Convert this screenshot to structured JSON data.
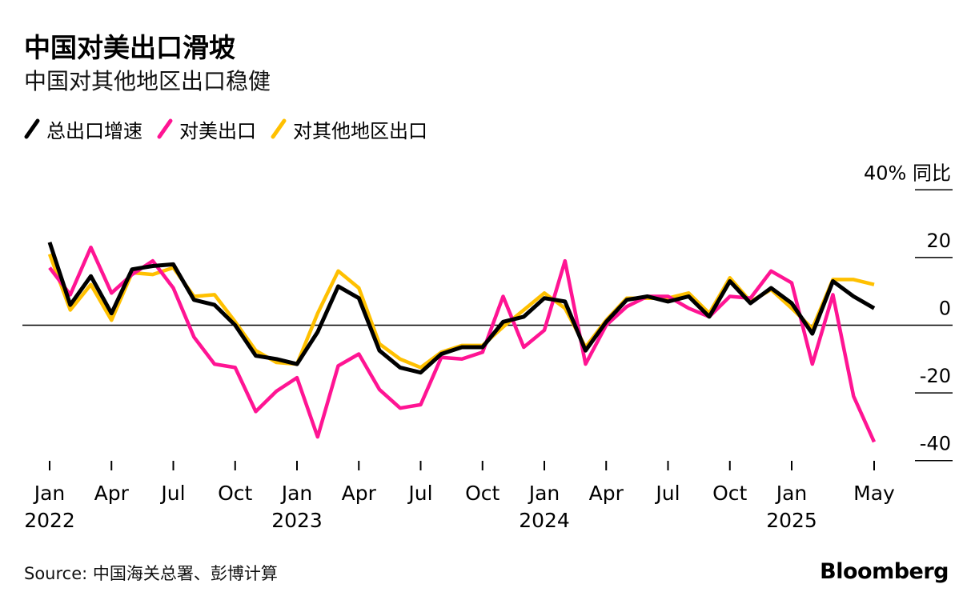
{
  "title": "中国对美出口滑坡",
  "subtitle": "中国对其他地区出口稳健",
  "source": "Source: 中国海关总署、彭博计算",
  "brand": "Bloomberg",
  "legend": [
    {
      "label": "总出口增速",
      "color": "#000000",
      "icon": "diagonal-line-swatch"
    },
    {
      "label": "对美出口",
      "color": "#ff1493",
      "icon": "diagonal-line-swatch"
    },
    {
      "label": "对其他地区出口",
      "color": "#ffc000",
      "icon": "diagonal-line-swatch"
    }
  ],
  "chart_data": {
    "type": "line",
    "x": [
      "2022-01",
      "2022-02",
      "2022-03",
      "2022-04",
      "2022-05",
      "2022-06",
      "2022-07",
      "2022-08",
      "2022-09",
      "2022-10",
      "2022-11",
      "2022-12",
      "2023-01",
      "2023-02",
      "2023-03",
      "2023-04",
      "2023-05",
      "2023-06",
      "2023-07",
      "2023-08",
      "2023-09",
      "2023-10",
      "2023-11",
      "2023-12",
      "2024-01",
      "2024-02",
      "2024-03",
      "2024-04",
      "2024-05",
      "2024-06",
      "2024-07",
      "2024-08",
      "2024-09",
      "2024-10",
      "2024-11",
      "2024-12",
      "2025-01",
      "2025-02",
      "2025-03",
      "2025-04",
      "2025-05"
    ],
    "series": [
      {
        "name": "总出口增速",
        "color": "#000000",
        "values": [
          24.5,
          6.0,
          14.5,
          3.5,
          16.5,
          17.5,
          18.0,
          7.5,
          6.0,
          0.0,
          -9.0,
          -10.0,
          -11.5,
          -2.0,
          11.5,
          8.0,
          -7.5,
          -12.5,
          -14.0,
          -8.5,
          -6.5,
          -6.5,
          1.0,
          2.5,
          8.0,
          7.0,
          -7.5,
          1.0,
          7.5,
          8.5,
          7.0,
          8.5,
          2.5,
          13.0,
          6.5,
          11.0,
          6.5,
          -2.5,
          13.0,
          8.5,
          5.0
        ]
      },
      {
        "name": "对美出口",
        "color": "#ff1493",
        "values": [
          17.0,
          9.0,
          23.0,
          9.5,
          15.0,
          19.0,
          11.0,
          -3.5,
          -11.5,
          -12.5,
          -25.5,
          -19.5,
          -15.5,
          -33.0,
          -12.0,
          -8.5,
          -19.0,
          -24.5,
          -23.5,
          -9.5,
          -10.0,
          -8.0,
          8.5,
          -6.5,
          -1.5,
          19.0,
          -11.5,
          0.0,
          5.5,
          8.5,
          8.5,
          5.0,
          2.5,
          8.5,
          8.0,
          16.0,
          12.5,
          -11.5,
          9.0,
          -21.0,
          -34.5
        ]
      },
      {
        "name": "对其他地区出口",
        "color": "#ffc000",
        "values": [
          21.0,
          4.5,
          12.0,
          1.5,
          15.5,
          15.0,
          17.0,
          8.5,
          9.0,
          1.0,
          -7.5,
          -11.0,
          -11.5,
          3.5,
          16.0,
          11.0,
          -5.5,
          -10.0,
          -12.5,
          -8.0,
          -6.0,
          -6.0,
          -0.5,
          4.5,
          9.5,
          5.0,
          -6.5,
          1.5,
          8.0,
          8.0,
          8.0,
          9.5,
          3.5,
          14.0,
          7.0,
          10.5,
          5.0,
          -1.0,
          13.5,
          13.5,
          12.0
        ]
      }
    ],
    "x_tick_labels": [
      "Jan",
      "Apr",
      "Jul",
      "Oct",
      "Jan",
      "Apr",
      "Jul",
      "Oct",
      "Jan",
      "Apr",
      "Jul",
      "Oct",
      "Jan",
      "May"
    ],
    "x_tick_months": [
      "2022-01",
      "2022-04",
      "2022-07",
      "2022-10",
      "2023-01",
      "2023-04",
      "2023-07",
      "2023-10",
      "2024-01",
      "2024-04",
      "2024-07",
      "2024-10",
      "2025-01",
      "2025-05"
    ],
    "year_labels": [
      {
        "label": "2022",
        "month": "2022-01"
      },
      {
        "label": "2023",
        "month": "2023-01"
      },
      {
        "label": "2024",
        "month": "2024-01"
      },
      {
        "label": "2025",
        "month": "2025-01"
      }
    ],
    "y_ticks": [
      {
        "value": 40,
        "label": "40% 同比"
      },
      {
        "value": 20,
        "label": "20"
      },
      {
        "value": 0,
        "label": "0"
      },
      {
        "value": -20,
        "label": "-20"
      },
      {
        "value": -40,
        "label": "-40"
      }
    ],
    "ylim": [
      -40,
      40
    ],
    "y_axis_side": "right",
    "zero_line": true
  }
}
